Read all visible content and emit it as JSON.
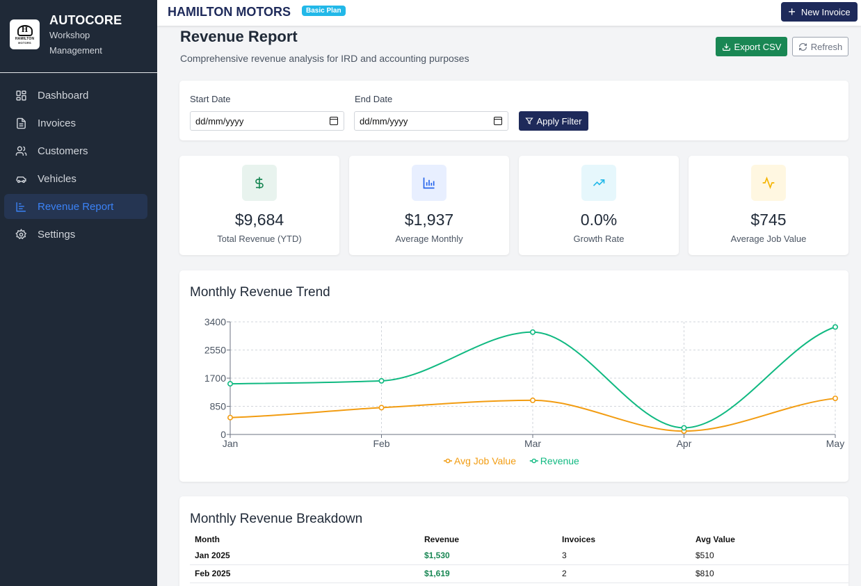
{
  "brand": {
    "name": "AUTOCORE",
    "subtitle_line1": "Workshop",
    "subtitle_line2": "Management",
    "logo_letter": "H",
    "logo_text": "HAMILTON",
    "logo_subtext": "MOTORS"
  },
  "nav": [
    {
      "label": "Dashboard",
      "icon": "dashboard-icon",
      "active": false
    },
    {
      "label": "Invoices",
      "icon": "document-icon",
      "active": false
    },
    {
      "label": "Customers",
      "icon": "users-icon",
      "active": false
    },
    {
      "label": "Vehicles",
      "icon": "car-icon",
      "active": false
    },
    {
      "label": "Revenue Report",
      "icon": "bar-chart-icon",
      "active": true
    },
    {
      "label": "Settings",
      "icon": "gear-icon",
      "active": false
    }
  ],
  "topbar": {
    "company": "HAMILTON MOTORS",
    "plan": "Basic Plan",
    "new_invoice": "New Invoice"
  },
  "page": {
    "title": "Revenue Report",
    "subtitle": "Comprehensive revenue analysis for IRD and accounting purposes",
    "export_label": "Export CSV",
    "refresh_label": "Refresh"
  },
  "filter": {
    "start_label": "Start Date",
    "start_value": "dd/mm/yyyy",
    "end_label": "End Date",
    "end_value": "dd/mm/yyyy",
    "apply_label": "Apply Filter"
  },
  "stats": [
    {
      "value": "$9,684",
      "label": "Total Revenue (YTD)",
      "icon": "dollar-icon",
      "color": "#198754",
      "bg": "#e8f3ee"
    },
    {
      "value": "$1,937",
      "label": "Average Monthly",
      "icon": "bar-chart-icon",
      "color": "#2563eb",
      "bg": "#e8efff"
    },
    {
      "value": "0.0%",
      "label": "Growth Rate",
      "icon": "trending-up-icon",
      "color": "#22b8e8",
      "bg": "#e6f7fc"
    },
    {
      "value": "$745",
      "label": "Average Job Value",
      "icon": "pulse-icon",
      "color": "#f5b400",
      "bg": "#fff7e1"
    }
  ],
  "chart_title": "Monthly Revenue Trend",
  "chart_data": {
    "type": "line",
    "categories": [
      "Jan",
      "Feb",
      "Mar",
      "Apr",
      "May"
    ],
    "series": [
      {
        "name": "Avg Job Value",
        "values": [
          510,
          810,
          1030,
          100,
          1090
        ],
        "color": "#f29c11"
      },
      {
        "name": "Revenue",
        "values": [
          1530,
          1619,
          3090,
          200,
          3245
        ],
        "color": "#10b981"
      }
    ],
    "yticks": [
      0,
      850,
      1700,
      2550,
      3400
    ],
    "ylim": [
      0,
      3400
    ],
    "grid": true,
    "legend_position": "bottom"
  },
  "table": {
    "title": "Monthly Revenue Breakdown",
    "headers": [
      "Month",
      "Revenue",
      "Invoices",
      "Avg Value"
    ],
    "rows": [
      [
        "Jan 2025",
        "$1,530",
        "3",
        "$510"
      ],
      [
        "Feb 2025",
        "$1,619",
        "2",
        "$810"
      ]
    ]
  }
}
